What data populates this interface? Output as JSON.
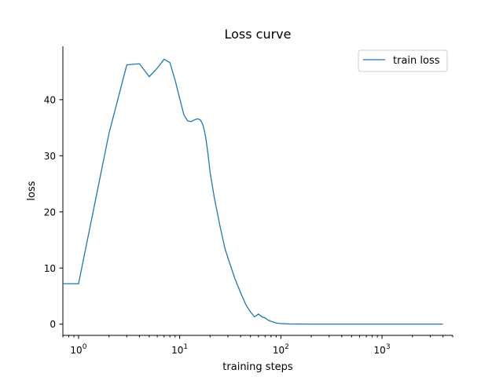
{
  "chart_data": {
    "type": "line",
    "title": "Loss curve",
    "xlabel": "training steps",
    "ylabel": "loss",
    "xscale": "log",
    "xlim": [
      0.7,
      5000
    ],
    "ylim": [
      -2,
      49.5
    ],
    "grid": false,
    "legend": "top-right",
    "x_ticks": [
      {
        "value": 1,
        "base": "10",
        "exp": "0"
      },
      {
        "value": 10,
        "base": "10",
        "exp": "1"
      },
      {
        "value": 100,
        "base": "10",
        "exp": "2"
      },
      {
        "value": 1000,
        "base": "10",
        "exp": "3"
      }
    ],
    "y_ticks": [
      {
        "value": 0,
        "label": "0"
      },
      {
        "value": 10,
        "label": "10"
      },
      {
        "value": 20,
        "label": "20"
      },
      {
        "value": 30,
        "label": "30"
      },
      {
        "value": 40,
        "label": "40"
      }
    ],
    "series": [
      {
        "name": "train loss",
        "color": "#1f77b4",
        "x": [
          0.7,
          1,
          2,
          3,
          4,
          5,
          6,
          7,
          8,
          9,
          10,
          11,
          12,
          13,
          14,
          15,
          16,
          17,
          18,
          19,
          20,
          22,
          25,
          28,
          30,
          35,
          40,
          45,
          50,
          55,
          60,
          65,
          70,
          75,
          80,
          90,
          100,
          120,
          150,
          200,
          300,
          500,
          1000,
          2000,
          4000
        ],
        "y": [
          7.2,
          7.2,
          34,
          46.2,
          46.4,
          44.1,
          45.6,
          47.2,
          46.6,
          43.5,
          40.2,
          37.3,
          36.2,
          36.1,
          36.4,
          36.6,
          36.4,
          35.5,
          33.5,
          30.5,
          27,
          22.5,
          17.5,
          13.5,
          11.8,
          8.2,
          5.6,
          3.5,
          2.2,
          1.3,
          1.8,
          1.3,
          1.1,
          0.7,
          0.5,
          0.2,
          0.1,
          0.04,
          0.02,
          0.01,
          0.01,
          0.01,
          0.01,
          0.01,
          0.01
        ]
      }
    ]
  }
}
